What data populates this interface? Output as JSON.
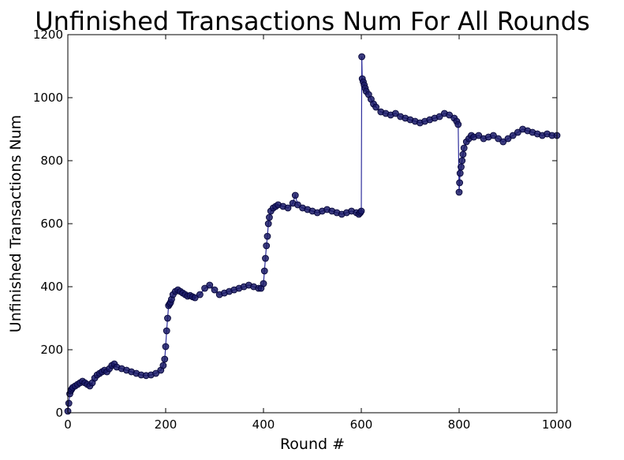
{
  "chart_data": {
    "type": "line",
    "title": "Unfinished Transactions Num For All Rounds",
    "xlabel": "Round #",
    "ylabel": "Unfinished Transactions Num",
    "xlim": [
      0,
      1000
    ],
    "ylim": [
      0,
      1200
    ],
    "xticks": [
      "0",
      "200",
      "400",
      "600",
      "800",
      "1000"
    ],
    "yticks": [
      "0",
      "200",
      "400",
      "600",
      "800",
      "1000",
      "1200"
    ],
    "grid": false,
    "legend": "none",
    "colors": {
      "line": "#2e2e9c",
      "marker_fill": "#1a1a66",
      "marker_edge": "#000033",
      "axes": "#000000"
    },
    "series": [
      {
        "x": [
          0,
          2,
          4,
          6,
          8,
          10,
          15,
          20,
          25,
          30,
          35,
          40,
          45,
          50,
          55,
          60,
          65,
          70,
          75,
          80,
          85,
          90,
          95,
          100,
          110,
          120,
          130,
          140,
          150,
          160,
          170,
          180,
          190,
          195,
          198,
          200,
          202,
          204,
          206,
          208,
          210,
          212,
          215,
          220,
          225,
          230,
          235,
          240,
          245,
          250,
          255,
          260,
          270,
          280,
          290,
          300,
          310,
          320,
          330,
          340,
          350,
          360,
          370,
          380,
          390,
          395,
          400,
          402,
          404,
          406,
          408,
          410,
          412,
          415,
          420,
          425,
          430,
          440,
          450,
          460,
          465,
          470,
          480,
          490,
          500,
          510,
          520,
          530,
          540,
          550,
          560,
          570,
          580,
          590,
          595,
          598,
          600,
          601,
          602,
          604,
          606,
          608,
          610,
          615,
          620,
          625,
          630,
          640,
          650,
          660,
          670,
          680,
          690,
          700,
          710,
          720,
          730,
          740,
          750,
          760,
          770,
          780,
          790,
          795,
          798,
          800,
          801,
          802,
          804,
          806,
          808,
          810,
          815,
          820,
          825,
          830,
          840,
          850,
          860,
          870,
          880,
          890,
          900,
          910,
          920,
          930,
          940,
          950,
          960,
          970,
          980,
          990,
          1000
        ],
        "y": [
          5,
          30,
          60,
          70,
          75,
          80,
          85,
          90,
          95,
          100,
          95,
          90,
          85,
          95,
          110,
          120,
          125,
          130,
          135,
          130,
          140,
          150,
          155,
          145,
          140,
          135,
          130,
          125,
          120,
          118,
          120,
          125,
          135,
          150,
          170,
          210,
          260,
          300,
          340,
          345,
          350,
          360,
          375,
          385,
          390,
          385,
          380,
          375,
          370,
          372,
          368,
          365,
          375,
          395,
          405,
          390,
          375,
          380,
          385,
          390,
          395,
          400,
          405,
          400,
          395,
          395,
          410,
          450,
          490,
          530,
          560,
          600,
          620,
          640,
          650,
          655,
          660,
          655,
          650,
          665,
          690,
          660,
          650,
          645,
          640,
          635,
          640,
          645,
          640,
          635,
          630,
          635,
          640,
          635,
          630,
          635,
          640,
          1130,
          1060,
          1050,
          1040,
          1030,
          1020,
          1010,
          995,
          980,
          970,
          955,
          950,
          945,
          950,
          940,
          935,
          930,
          925,
          920,
          925,
          930,
          935,
          940,
          950,
          945,
          935,
          925,
          915,
          700,
          730,
          760,
          780,
          800,
          820,
          840,
          860,
          870,
          880,
          875,
          880,
          870,
          875,
          880,
          870,
          860,
          870,
          880,
          890,
          900,
          895,
          890,
          885,
          880,
          885,
          880,
          880
        ]
      }
    ]
  }
}
